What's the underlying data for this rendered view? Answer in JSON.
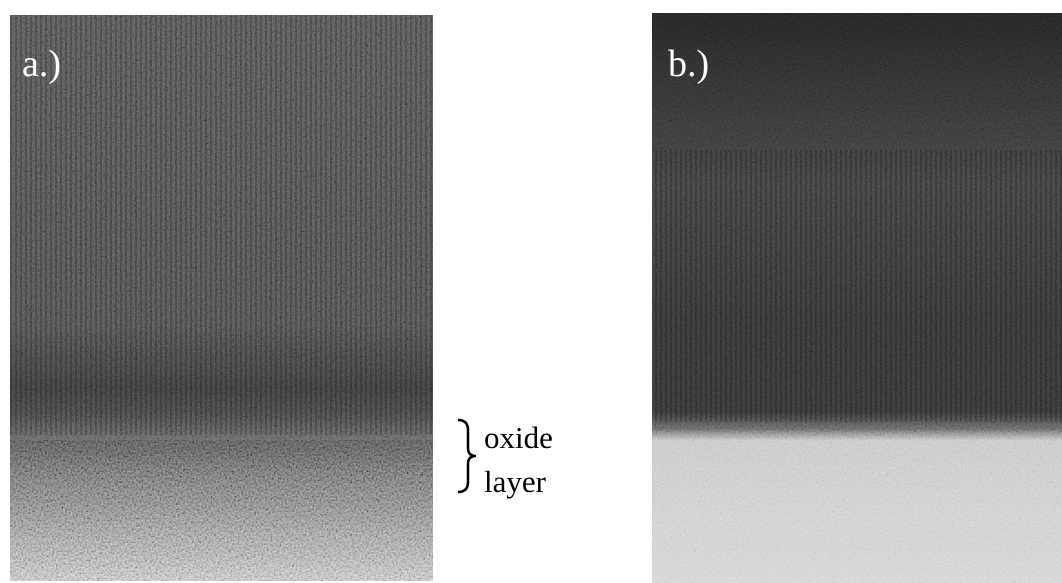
{
  "panels": [
    {
      "label": "a.)"
    },
    {
      "label": "b.)"
    }
  ],
  "annotation": {
    "lines": [
      "oxide",
      "layer"
    ]
  }
}
